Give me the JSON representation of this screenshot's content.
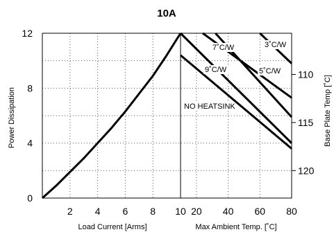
{
  "chart_data": {
    "type": "line",
    "title": "10A",
    "left_panel": {
      "xlabel": "Load Current  [Arms]",
      "ylabel": "Power Dissipation",
      "xlim": [
        0,
        10
      ],
      "ylim": [
        0,
        12
      ],
      "xticks": [
        2,
        4,
        6,
        8,
        10
      ],
      "yticks": [
        0,
        4,
        8,
        12
      ],
      "grid": "dotted",
      "series": [
        {
          "x": [
            0,
            1,
            2,
            3,
            4,
            5,
            6,
            7,
            8,
            9,
            10
          ],
          "y": [
            0,
            0.9,
            1.9,
            2.9,
            4.0,
            5.1,
            6.3,
            7.6,
            8.9,
            10.4,
            12
          ]
        }
      ]
    },
    "right_panel": {
      "xlabel": "Max Ambient Temp. [˚C]",
      "ylabel_right": "Base Plate Temp [˚C]",
      "xlim": [
        10,
        80
      ],
      "xticks": [
        10,
        20,
        40,
        60,
        80
      ],
      "right_ticks": [
        110,
        115,
        120
      ],
      "grid": "dotted",
      "series": [
        {
          "name": "NO HEATSINK",
          "x": [
            10,
            80
          ],
          "y": [
            10.4,
            3.6
          ]
        },
        {
          "name": "9˚C/W",
          "x": [
            10,
            80
          ],
          "y": [
            12,
            4.0
          ]
        },
        {
          "name": "5˚C/W",
          "x": [
            32,
            80
          ],
          "y": [
            12,
            5.9
          ]
        },
        {
          "name": "7˚C/W",
          "x": [
            24,
            80
          ],
          "y": [
            12,
            7.3
          ]
        },
        {
          "name": "3˚C/W",
          "x": [
            60,
            80
          ],
          "y": [
            12,
            9.8
          ]
        }
      ]
    }
  }
}
